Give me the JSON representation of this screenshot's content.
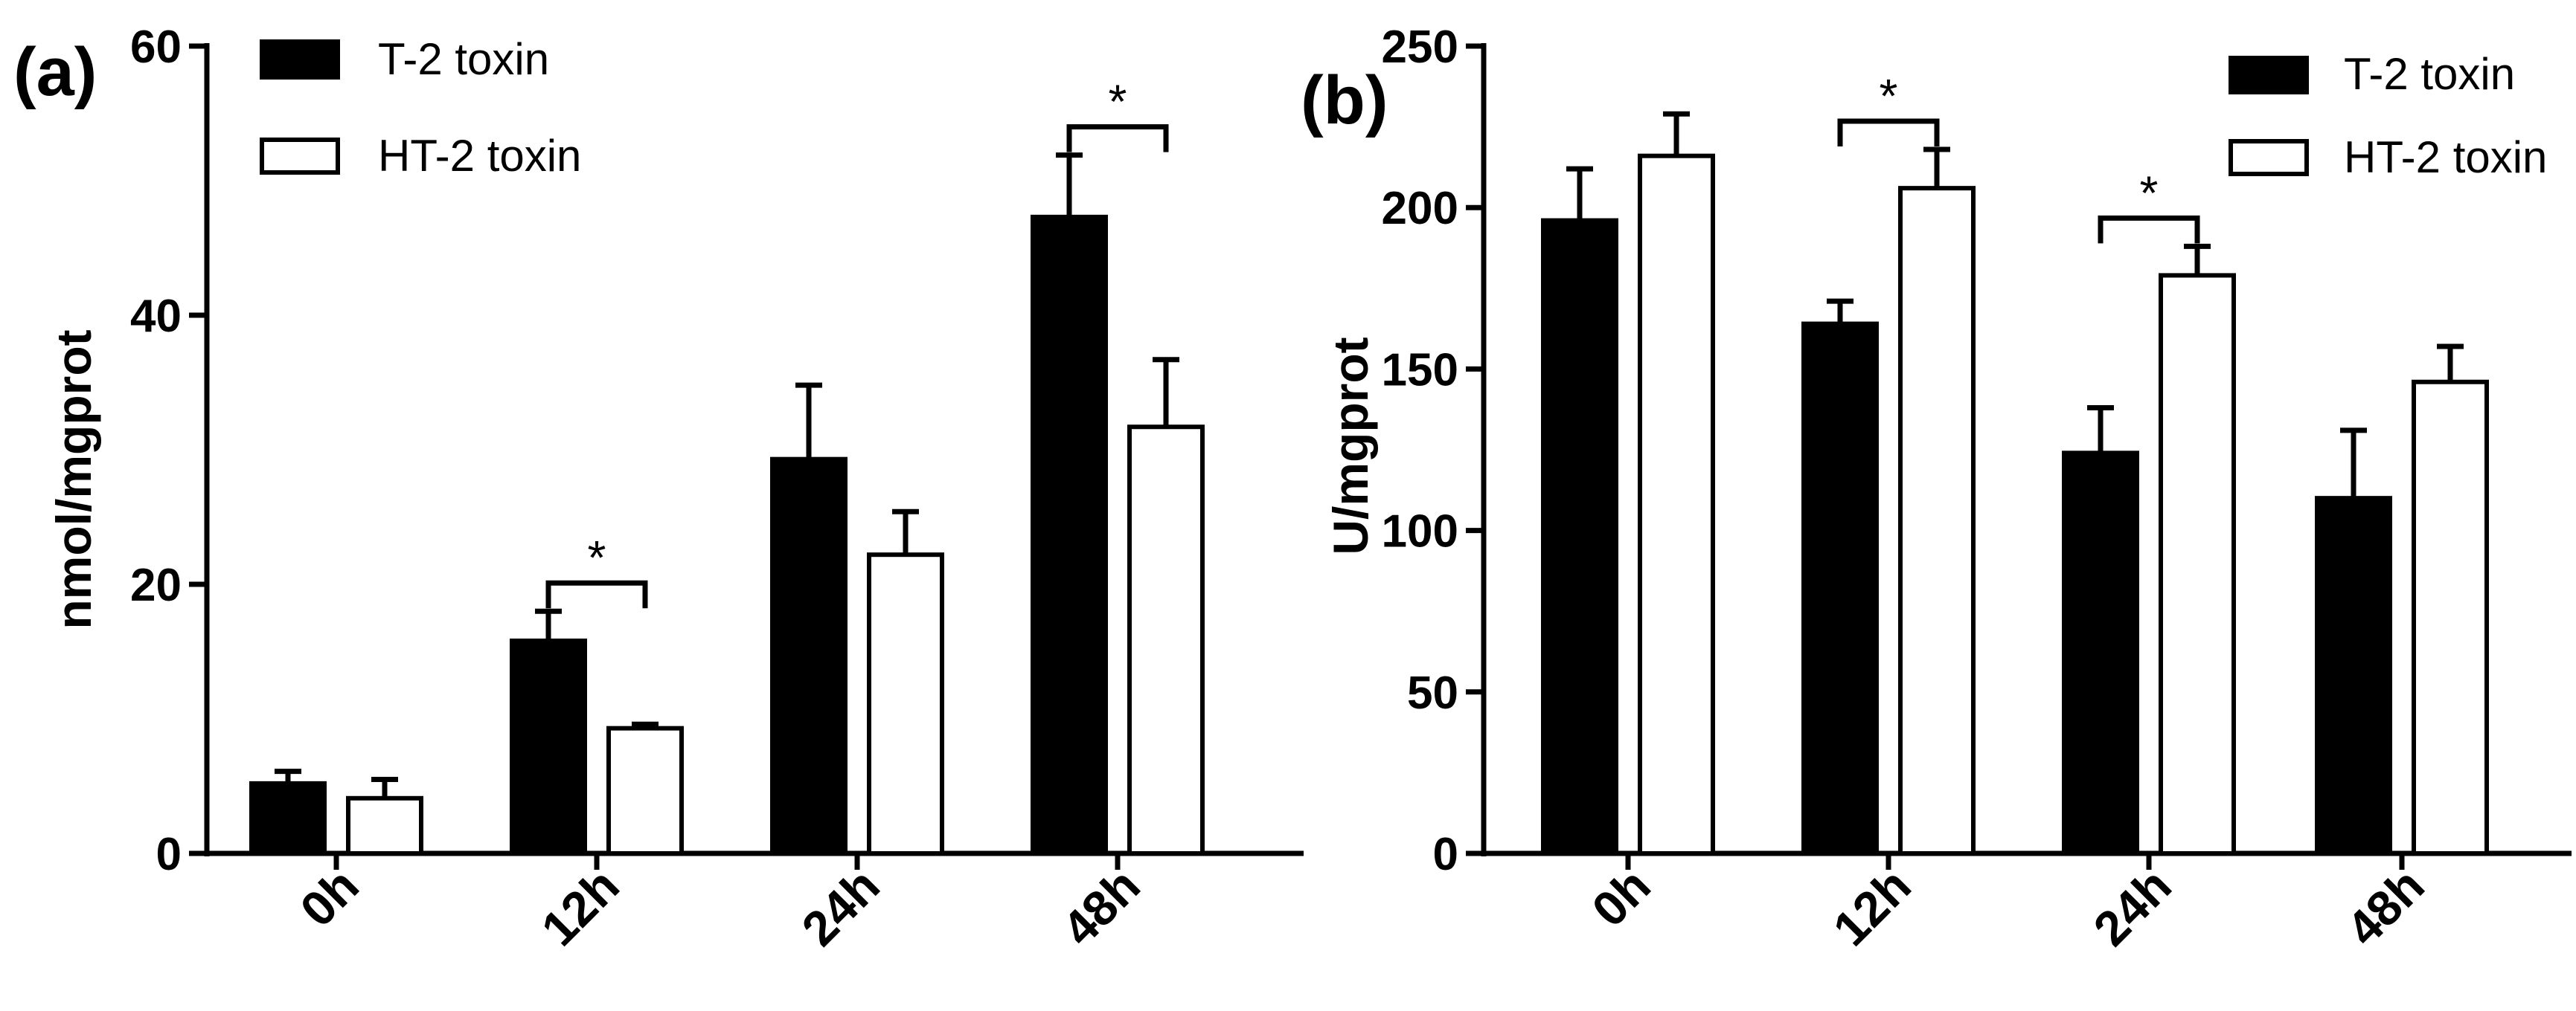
{
  "colors": {
    "t2": "#000000",
    "ht2": "#ffffff",
    "stroke": "#000000"
  },
  "chart_data": [
    {
      "type": "bar",
      "panel": "(a)",
      "ylabel": "nmol/mgprot",
      "xlabel": "",
      "ylim": [
        0,
        60
      ],
      "yticks": [
        "0",
        "20",
        "40",
        "60"
      ],
      "categories": [
        "0h",
        "12h",
        "24h",
        "48h"
      ],
      "series": [
        {
          "name": "T-2 toxin",
          "values": [
            5.2,
            15.8,
            29.3,
            47.3
          ],
          "errors": [
            0.9,
            2.2,
            5.5,
            4.6
          ]
        },
        {
          "name": "HT-2 toxin",
          "values": [
            4.1,
            9.3,
            22.2,
            31.7
          ],
          "errors": [
            1.4,
            0.3,
            3.2,
            5.0
          ]
        }
      ],
      "significance": [
        {
          "category": "12h",
          "label": "*"
        },
        {
          "category": "48h",
          "label": "*"
        }
      ],
      "legend": "top-left"
    },
    {
      "type": "bar",
      "panel": "(b)",
      "ylabel": "U/mgprot",
      "xlabel": "",
      "ylim": [
        0,
        250
      ],
      "yticks": [
        "0",
        "50",
        "100",
        "150",
        "200",
        "250"
      ],
      "categories": [
        "0h",
        "12h",
        "24h",
        "48h"
      ],
      "series": [
        {
          "name": "T-2 toxin",
          "values": [
            196,
            164,
            124,
            110
          ],
          "errors": [
            16,
            7,
            14,
            21
          ]
        },
        {
          "name": "HT-2 toxin",
          "values": [
            216,
            206,
            179,
            146
          ],
          "errors": [
            13,
            12,
            9,
            11
          ]
        }
      ],
      "significance": [
        {
          "category": "12h",
          "label": "*"
        },
        {
          "category": "24h",
          "label": "*"
        }
      ],
      "legend": "top-right"
    }
  ]
}
